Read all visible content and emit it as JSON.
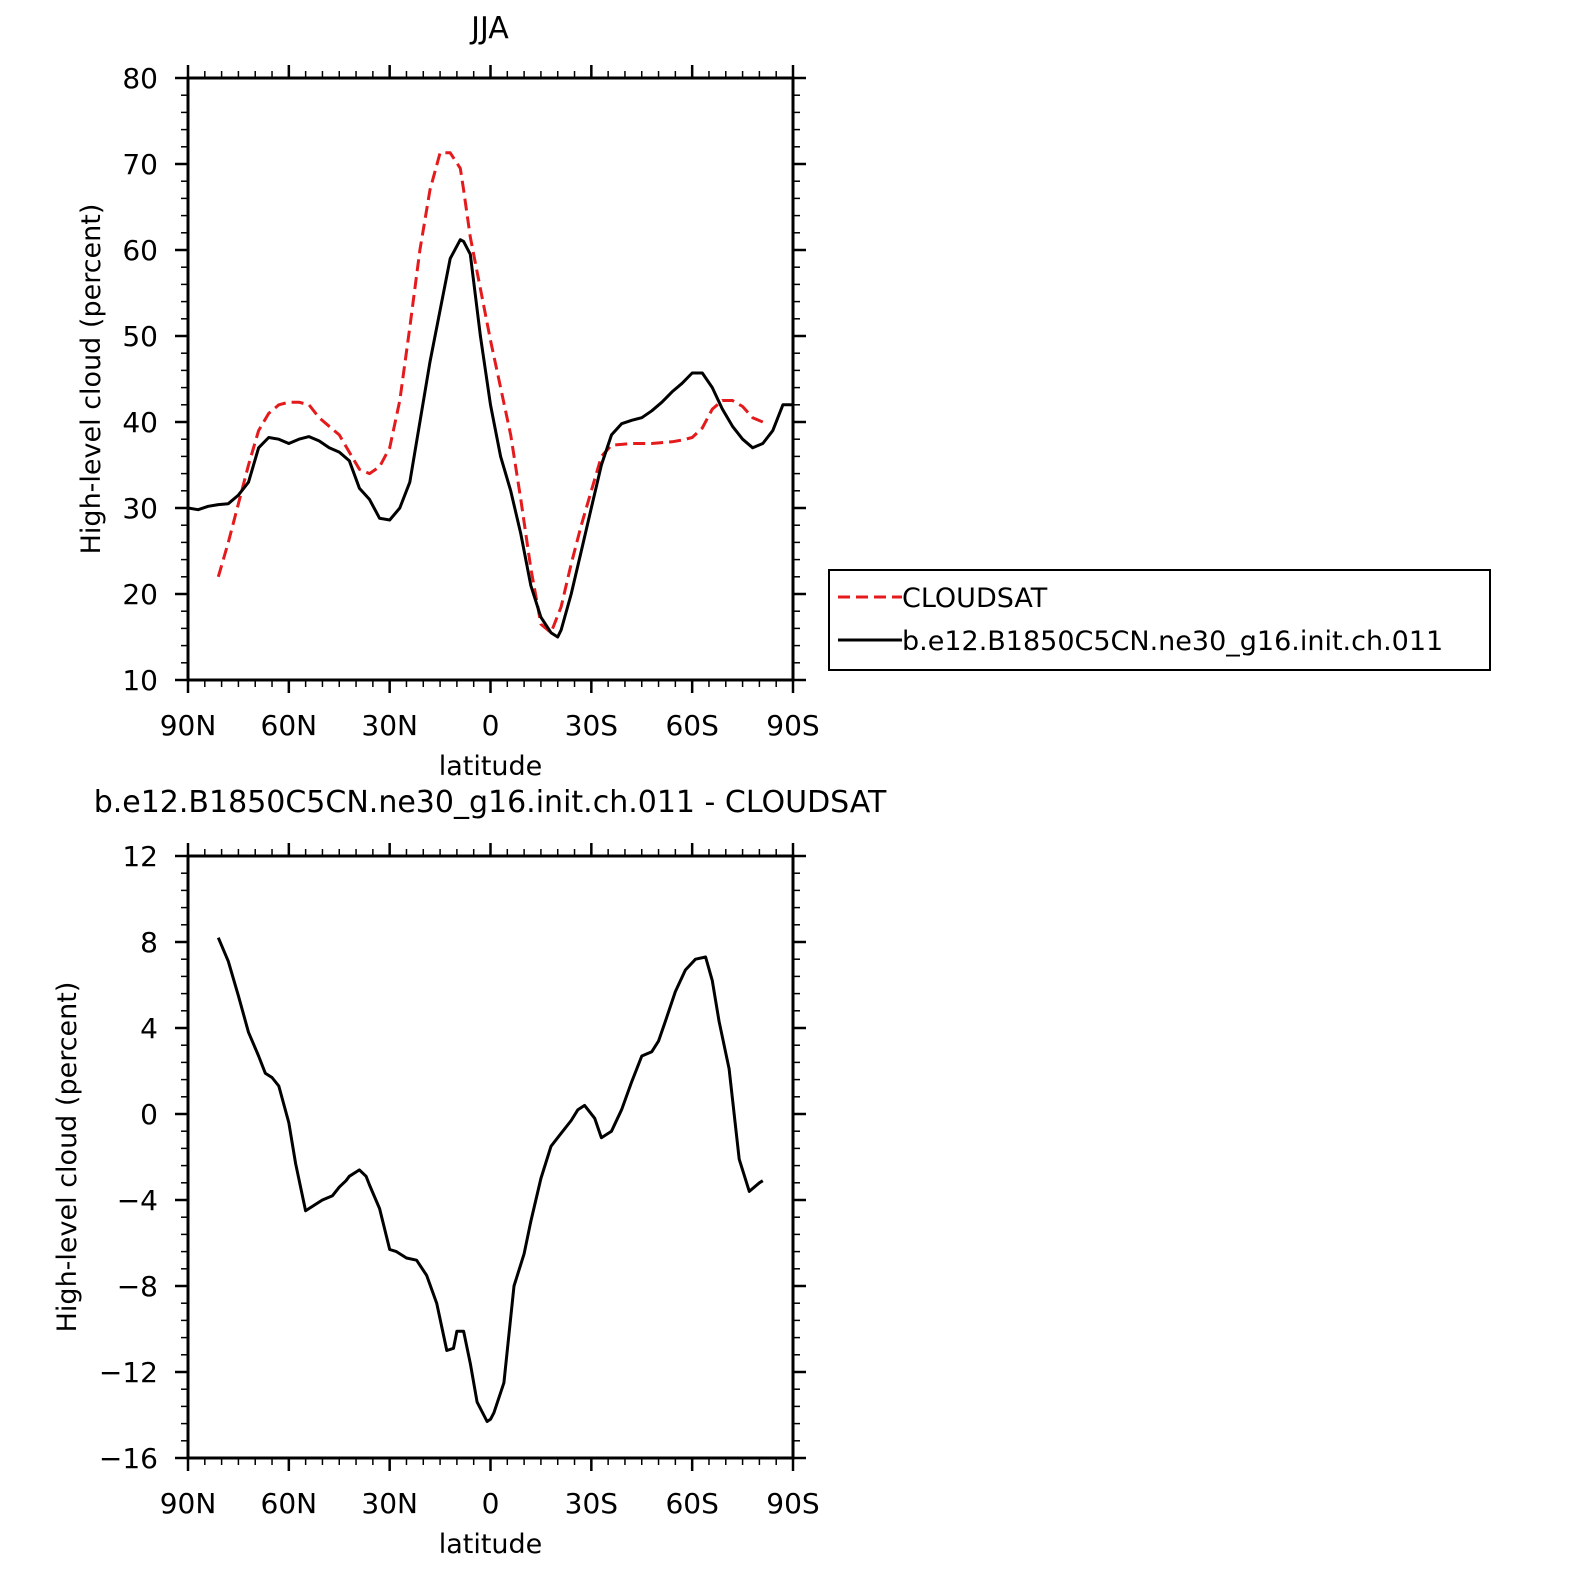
{
  "chart_data": [
    {
      "type": "line",
      "title": "JJA",
      "xlabel": "latitude",
      "ylabel": "High-level cloud (percent)",
      "xlim": [
        90,
        -90
      ],
      "ylim": [
        10,
        80
      ],
      "xticks": [
        90,
        60,
        30,
        0,
        -30,
        -60,
        -90
      ],
      "xtick_labels": [
        "90N",
        "60N",
        "30N",
        "0",
        "30S",
        "60S",
        "90S"
      ],
      "yticks": [
        10,
        20,
        30,
        40,
        50,
        60,
        70,
        80
      ],
      "ytick_labels": [
        "10",
        "20",
        "30",
        "40",
        "50",
        "60",
        "70",
        "80"
      ],
      "legend": {
        "placement": "right",
        "entries": [
          "CLOUDSAT",
          "b.e12.B1850C5CN.ne30_g16.init.ch.011"
        ]
      },
      "series": [
        {
          "name": "CLOUDSAT",
          "color": "#e41a1c",
          "dash": "dashed",
          "x": [
            81,
            78,
            75,
            72,
            69,
            66,
            63,
            60,
            57,
            54,
            51,
            48,
            45,
            42,
            39,
            36,
            33,
            30,
            27,
            24,
            21,
            18,
            15,
            12,
            9,
            8,
            6,
            3,
            0,
            -3,
            -6,
            -9,
            -12,
            -15,
            -18,
            -21,
            -24,
            -27,
            -30,
            -33,
            -36,
            -39,
            -42,
            -45,
            -48,
            -51,
            -54,
            -57,
            -60,
            -63,
            -66,
            -69,
            -72,
            -75,
            -78,
            -81
          ],
          "y": [
            22,
            26,
            30.5,
            35,
            39,
            41,
            42,
            42.3,
            42.3,
            42,
            40.5,
            39.5,
            38.5,
            36.5,
            34.5,
            34,
            34.8,
            37,
            42.5,
            51,
            60,
            67,
            71.3,
            71.3,
            69.5,
            67,
            61.5,
            55.5,
            49.5,
            44,
            38.5,
            31,
            23,
            16.5,
            15.5,
            18.5,
            23.5,
            28,
            32,
            36,
            37.3,
            37.4,
            37.5,
            37.5,
            37.5,
            37.6,
            37.7,
            37.9,
            38.2,
            39.3,
            41.5,
            42.5,
            42.5,
            41.8,
            40.5,
            40
          ]
        },
        {
          "name": "b.e12.B1850C5CN.ne30_g16.init.ch.011",
          "color": "#000000",
          "dash": "solid",
          "x": [
            90,
            87,
            84,
            81,
            78,
            75,
            72,
            69,
            66,
            63,
            60,
            57,
            54,
            51,
            48,
            45,
            42,
            39,
            36,
            33,
            30,
            27,
            24,
            21,
            18,
            15,
            12,
            9,
            8,
            6,
            3,
            0,
            -3,
            -6,
            -9,
            -12,
            -15,
            -18,
            -20,
            -21,
            -24,
            -27,
            -30,
            -33,
            -36,
            -39,
            -42,
            -45,
            -48,
            -51,
            -54,
            -57,
            -60,
            -63,
            -66,
            -69,
            -72,
            -75,
            -78,
            -81,
            -84,
            -87,
            -90
          ],
          "y": [
            30,
            29.8,
            30.2,
            30.4,
            30.5,
            31.5,
            33,
            37,
            38.2,
            38,
            37.5,
            38,
            38.3,
            37.8,
            37,
            36.5,
            35.5,
            32.3,
            31,
            28.8,
            28.6,
            30,
            33,
            40,
            47,
            53,
            59,
            61.2,
            61,
            59.5,
            50,
            42,
            36,
            32,
            27,
            21,
            17.3,
            15.5,
            15,
            15.8,
            20,
            25,
            30,
            35,
            38.5,
            39.8,
            40.2,
            40.5,
            41.3,
            42.3,
            43.5,
            44.5,
            45.7,
            45.7,
            44,
            41.5,
            39.5,
            38,
            37,
            37.5,
            39,
            42,
            42
          ]
        }
      ]
    },
    {
      "type": "line",
      "title": "b.e12.B1850C5CN.ne30_g16.init.ch.011 - CLOUDSAT",
      "xlabel": "latitude",
      "ylabel": "High-level cloud (percent)",
      "xlim": [
        90,
        -90
      ],
      "ylim": [
        -16,
        12
      ],
      "xticks": [
        90,
        60,
        30,
        0,
        -30,
        -60,
        -90
      ],
      "xtick_labels": [
        "90N",
        "60N",
        "30N",
        "0",
        "30S",
        "60S",
        "90S"
      ],
      "yticks": [
        -16,
        -12,
        -8,
        -4,
        0,
        4,
        8,
        12
      ],
      "ytick_labels": [
        "−16",
        "−12",
        "−8",
        "−4",
        "0",
        "4",
        "8",
        "12"
      ],
      "series": [
        {
          "color": "#000000",
          "dash": "solid",
          "x": [
            81,
            78,
            75,
            72,
            69,
            67,
            65,
            63,
            60,
            58,
            55,
            52,
            50,
            47,
            45,
            43,
            42,
            39,
            37,
            36,
            33,
            30,
            28,
            25,
            22,
            19,
            16,
            13,
            11,
            10,
            8,
            6,
            4,
            1,
            0,
            -1,
            -4,
            -7,
            -10,
            -12,
            -15,
            -18,
            -21,
            -24,
            -26,
            -28,
            -31,
            -33,
            -36,
            -39,
            -42,
            -45,
            -48,
            -50,
            -52,
            -55,
            -58,
            -61,
            -64,
            -66,
            -68,
            -71,
            -74,
            -77,
            -80,
            -81
          ],
          "y": [
            8.2,
            7.1,
            5.5,
            3.8,
            2.7,
            1.9,
            1.7,
            1.3,
            -0.4,
            -2.3,
            -4.5,
            -4.2,
            -4,
            -3.8,
            -3.4,
            -3.1,
            -2.9,
            -2.6,
            -2.9,
            -3.3,
            -4.4,
            -6.3,
            -6.4,
            -6.7,
            -6.8,
            -7.5,
            -8.8,
            -11,
            -10.9,
            -10.1,
            -10.1,
            -11.6,
            -13.4,
            -14.3,
            -14.2,
            -13.9,
            -12.5,
            -8,
            -6.5,
            -5,
            -3,
            -1.5,
            -0.9,
            -0.3,
            0.2,
            0.4,
            -0.2,
            -1.1,
            -0.8,
            0.2,
            1.5,
            2.7,
            2.9,
            3.4,
            4.3,
            5.7,
            6.7,
            7.2,
            7.3,
            6.2,
            4.3,
            2.1,
            -2.1,
            -3.6,
            -3.2,
            -3.1
          ]
        }
      ]
    }
  ]
}
